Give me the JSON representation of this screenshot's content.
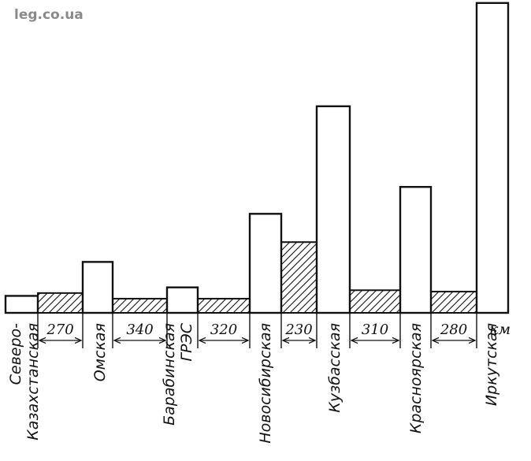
{
  "watermark": "leg.co.ua",
  "chart_data": {
    "type": "bar",
    "systems": [
      {
        "label": [
          "Северо-",
          "Казахстанская"
        ],
        "value": 12
      },
      {
        "label": [
          "Омская"
        ],
        "value": 36
      },
      {
        "label": [
          "Барабинская",
          "ГРЭС"
        ],
        "value": 18
      },
      {
        "label": [
          "Новосибирская"
        ],
        "value": 70
      },
      {
        "label": [
          "Кузбасская"
        ],
        "value": 146
      },
      {
        "label": [
          "Красноярская"
        ],
        "value": 89
      },
      {
        "label": [
          "Иркутская"
        ],
        "value": 219
      }
    ],
    "links": [
      {
        "distance": "270",
        "value": 14
      },
      {
        "distance": "340",
        "value": 10
      },
      {
        "distance": "320",
        "value": 10
      },
      {
        "distance": "230",
        "value": 50
      },
      {
        "distance": "310",
        "value": 16
      },
      {
        "distance": "280",
        "value": 15
      }
    ],
    "distance_unit": "км"
  }
}
